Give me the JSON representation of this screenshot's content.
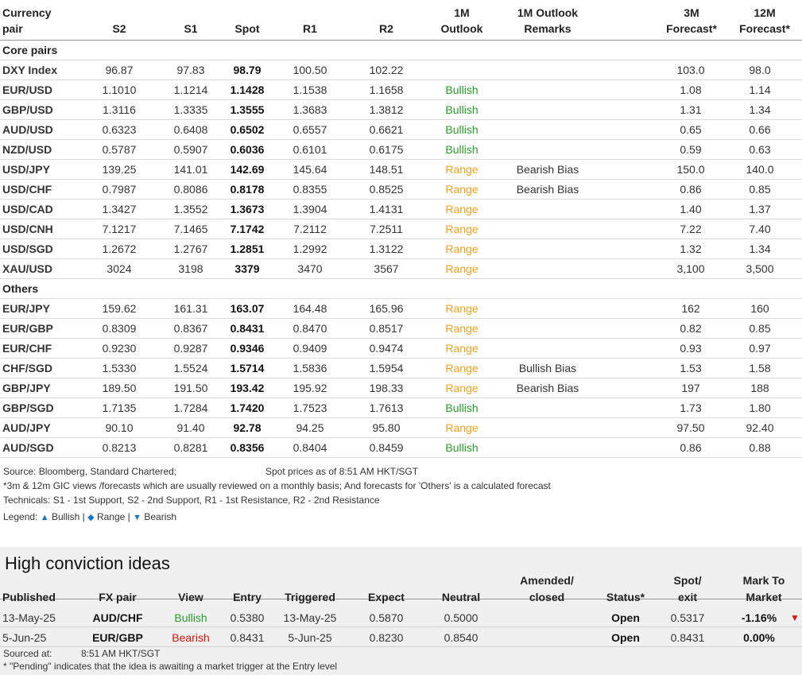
{
  "headers": {
    "pair": [
      "Currency",
      "pair"
    ],
    "s2": "S2",
    "s1": "S1",
    "spot": "Spot",
    "r1": "R1",
    "r2": "R2",
    "outlook": [
      "1M",
      "Outlook"
    ],
    "remarks": [
      "1M Outlook",
      "Remarks"
    ],
    "f3m": [
      "3M",
      "Forecast*"
    ],
    "f12m": [
      "12M",
      "Forecast*"
    ]
  },
  "sections": {
    "core": "Core pairs",
    "others": "Others"
  },
  "core_rows": [
    {
      "pair": "DXY Index",
      "s2": "96.87",
      "s1": "97.83",
      "spot": "98.79",
      "r1": "100.50",
      "r2": "102.22",
      "outlook": "",
      "cls": "",
      "remarks": "",
      "f3m": "103.0",
      "f12m": "98.0"
    },
    {
      "pair": "EUR/USD",
      "s2": "1.1010",
      "s1": "1.1214",
      "spot": "1.1428",
      "r1": "1.1538",
      "r2": "1.1658",
      "outlook": "Bullish",
      "cls": "bull",
      "remarks": "",
      "f3m": "1.08",
      "f12m": "1.14"
    },
    {
      "pair": "GBP/USD",
      "s2": "1.3116",
      "s1": "1.3335",
      "spot": "1.3555",
      "r1": "1.3683",
      "r2": "1.3812",
      "outlook": "Bullish",
      "cls": "bull",
      "remarks": "",
      "f3m": "1.31",
      "f12m": "1.34"
    },
    {
      "pair": "AUD/USD",
      "s2": "0.6323",
      "s1": "0.6408",
      "spot": "0.6502",
      "r1": "0.6557",
      "r2": "0.6621",
      "outlook": "Bullish",
      "cls": "bull",
      "remarks": "",
      "f3m": "0.65",
      "f12m": "0.66"
    },
    {
      "pair": "NZD/USD",
      "s2": "0.5787",
      "s1": "0.5907",
      "spot": "0.6036",
      "r1": "0.6101",
      "r2": "0.6175",
      "outlook": "Bullish",
      "cls": "bull",
      "remarks": "",
      "f3m": "0.59",
      "f12m": "0.63"
    },
    {
      "pair": "USD/JPY",
      "s2": "139.25",
      "s1": "141.01",
      "spot": "142.69",
      "r1": "145.64",
      "r2": "148.51",
      "outlook": "Range",
      "cls": "range",
      "remarks": "Bearish Bias",
      "f3m": "150.0",
      "f12m": "140.0"
    },
    {
      "pair": "USD/CHF",
      "s2": "0.7987",
      "s1": "0.8086",
      "spot": "0.8178",
      "r1": "0.8355",
      "r2": "0.8525",
      "outlook": "Range",
      "cls": "range",
      "remarks": "Bearish Bias",
      "f3m": "0.86",
      "f12m": "0.85"
    },
    {
      "pair": "USD/CAD",
      "s2": "1.3427",
      "s1": "1.3552",
      "spot": "1.3673",
      "r1": "1.3904",
      "r2": "1.4131",
      "outlook": "Range",
      "cls": "range",
      "remarks": "",
      "f3m": "1.40",
      "f12m": "1.37"
    },
    {
      "pair": "USD/CNH",
      "s2": "7.1217",
      "s1": "7.1465",
      "spot": "7.1742",
      "r1": "7.2112",
      "r2": "7.2511",
      "outlook": "Range",
      "cls": "range",
      "remarks": "",
      "f3m": "7.22",
      "f12m": "7.40"
    },
    {
      "pair": "USD/SGD",
      "s2": "1.2672",
      "s1": "1.2767",
      "spot": "1.2851",
      "r1": "1.2992",
      "r2": "1.3122",
      "outlook": "Range",
      "cls": "range",
      "remarks": "",
      "f3m": "1.32",
      "f12m": "1.34"
    },
    {
      "pair": "XAU/USD",
      "s2": "3024",
      "s1": "3198",
      "spot": "3379",
      "r1": "3470",
      "r2": "3567",
      "outlook": "Range",
      "cls": "range",
      "remarks": "",
      "f3m": "3,100",
      "f12m": "3,500"
    }
  ],
  "other_rows": [
    {
      "pair": "EUR/JPY",
      "s2": "159.62",
      "s1": "161.31",
      "spot": "163.07",
      "r1": "164.48",
      "r2": "165.96",
      "outlook": "Range",
      "cls": "range",
      "remarks": "",
      "f3m": "162",
      "f12m": "160"
    },
    {
      "pair": "EUR/GBP",
      "s2": "0.8309",
      "s1": "0.8367",
      "spot": "0.8431",
      "r1": "0.8470",
      "r2": "0.8517",
      "outlook": "Range",
      "cls": "range",
      "remarks": "",
      "f3m": "0.82",
      "f12m": "0.85"
    },
    {
      "pair": "EUR/CHF",
      "s2": "0.9230",
      "s1": "0.9287",
      "spot": "0.9346",
      "r1": "0.9409",
      "r2": "0.9474",
      "outlook": "Range",
      "cls": "range",
      "remarks": "",
      "f3m": "0.93",
      "f12m": "0.97"
    },
    {
      "pair": "CHF/SGD",
      "s2": "1.5330",
      "s1": "1.5524",
      "spot": "1.5714",
      "r1": "1.5836",
      "r2": "1.5954",
      "outlook": "Range",
      "cls": "range",
      "remarks": "Bullish Bias",
      "f3m": "1.53",
      "f12m": "1.58"
    },
    {
      "pair": "GBP/JPY",
      "s2": "189.50",
      "s1": "191.50",
      "spot": "193.42",
      "r1": "195.92",
      "r2": "198.33",
      "outlook": "Range",
      "cls": "range",
      "remarks": "Bearish Bias",
      "f3m": "197",
      "f12m": "188"
    },
    {
      "pair": "GBP/SGD",
      "s2": "1.7135",
      "s1": "1.7284",
      "spot": "1.7420",
      "r1": "1.7523",
      "r2": "1.7613",
      "outlook": "Bullish",
      "cls": "bull",
      "remarks": "",
      "f3m": "1.73",
      "f12m": "1.80"
    },
    {
      "pair": "AUD/JPY",
      "s2": "90.10",
      "s1": "91.40",
      "spot": "92.78",
      "r1": "94.25",
      "r2": "95.80",
      "outlook": "Range",
      "cls": "range",
      "remarks": "",
      "f3m": "97.50",
      "f12m": "92.40"
    },
    {
      "pair": "AUD/SGD",
      "s2": "0.8213",
      "s1": "0.8281",
      "spot": "0.8356",
      "r1": "0.8404",
      "r2": "0.8459",
      "outlook": "Bullish",
      "cls": "bull",
      "remarks": "",
      "f3m": "0.86",
      "f12m": "0.88"
    }
  ],
  "notes": {
    "source": "Source: Bloomberg, Standard Chartered;",
    "spot_time": "Spot prices as of 8:51 AM HKT/SGT",
    "forecast_note": "*3m & 12m GIC views /forecasts which are usually reviewed on a monthly basis; And forecasts for 'Others' is a calculated forecast",
    "technicals": "Technicals: S1 - 1st Support, S2 - 2nd Support, R1 - 1st Resistance, R2 - 2nd Resistance",
    "legend_label": "Legend:",
    "legend_bullish": "Bullish",
    "legend_range": "Range",
    "legend_bearish": "Bearish",
    "sep": "|"
  },
  "colors": {
    "bullish": "#2a9a2a",
    "range": "#f0a020",
    "bearish": "#e01010",
    "panel": "#f0f0f0"
  },
  "hc": {
    "title": "High conviction ideas",
    "headers": {
      "published": "Published",
      "pair": "FX pair",
      "view": "View",
      "entry": "Entry",
      "triggered": "Triggered",
      "expect": "Expect",
      "neutral": "Neutral",
      "amended": [
        "Amended/",
        "closed"
      ],
      "status": "Status*",
      "spot": [
        "Spot/",
        "exit"
      ],
      "mtm": [
        "Mark To",
        "Market"
      ]
    },
    "rows": [
      {
        "published": "13-May-25",
        "pair": "AUD/CHF",
        "view": "Bullish",
        "cls": "bull",
        "entry": "0.5380",
        "triggered": "13-May-25",
        "expect": "0.5870",
        "neutral": "0.5000",
        "amended": "",
        "status": "Open",
        "spot": "0.5317",
        "mtm": "-1.16%",
        "arrow": "▼"
      },
      {
        "published": "5-Jun-25",
        "pair": "EUR/GBP",
        "view": "Bearish",
        "cls": "bear",
        "entry": "0.8431",
        "triggered": "5-Jun-25",
        "expect": "0.8230",
        "neutral": "0.8540",
        "amended": "",
        "status": "Open",
        "spot": "0.8431",
        "mtm": "0.00%",
        "arrow": ""
      }
    ],
    "sourced_label": "Sourced at:",
    "sourced_time": "8:51 AM HKT/SGT",
    "pending_note": "* \"Pending\" indicates that the idea is awaiting a market trigger at the Entry level"
  }
}
